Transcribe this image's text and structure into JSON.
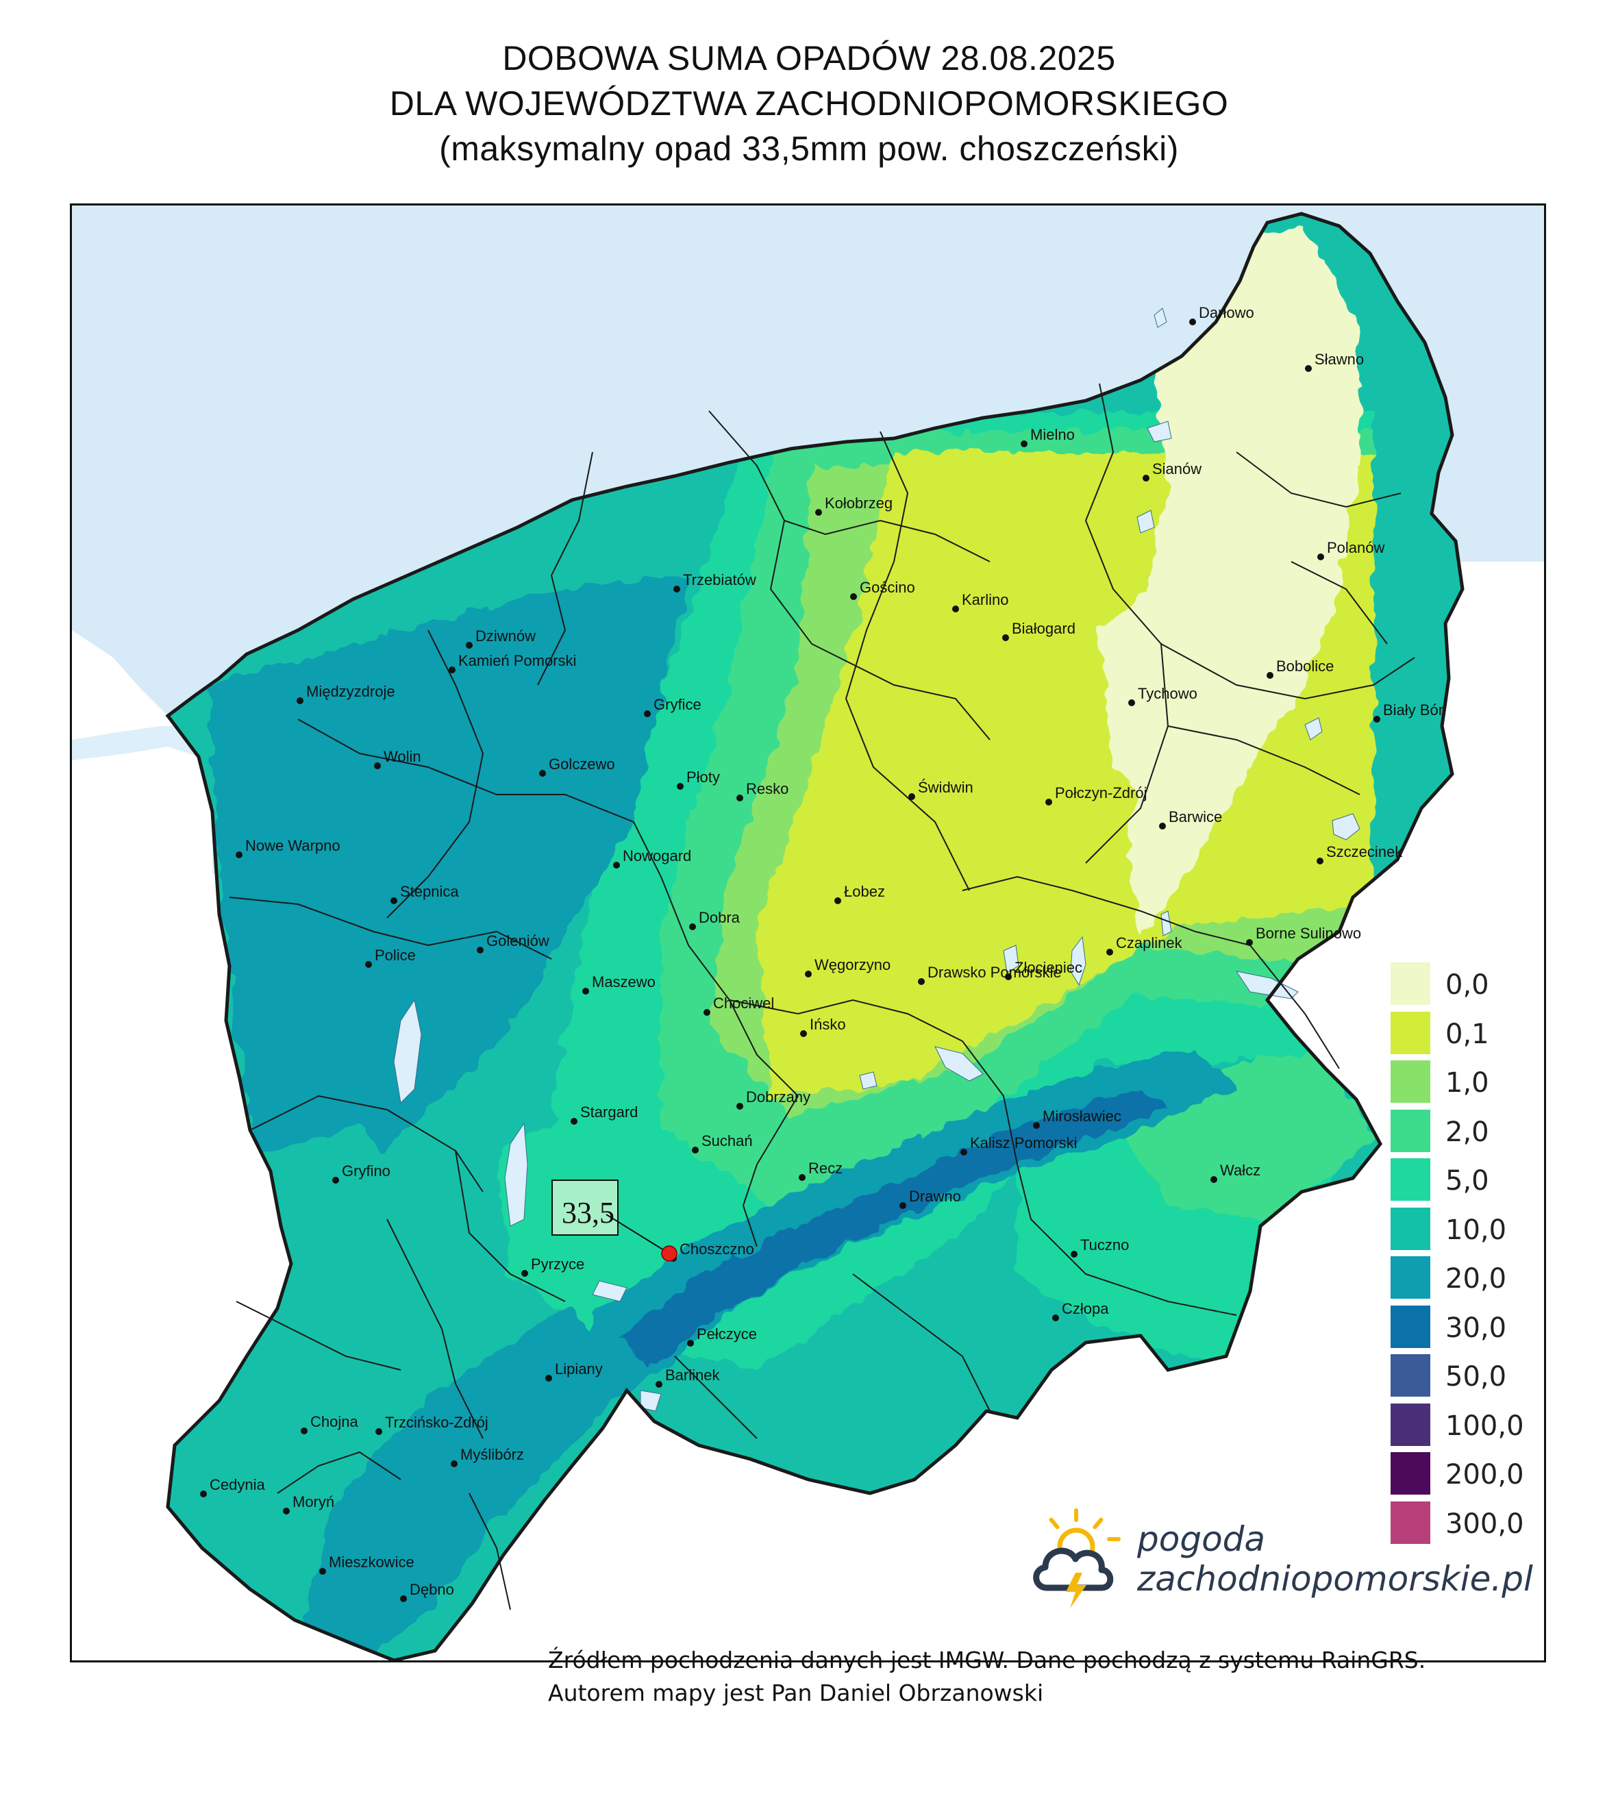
{
  "title": {
    "line1": "DOBOWA SUMA OPADÓW 28.08.2025",
    "line2": "DLA WOJEWÓDZTWA ZACHODNIOPOMORSKIEGO",
    "line3": "(maksymalny opad 33,5mm pow. choszczeński)"
  },
  "map": {
    "max_callout": "33,5",
    "max_location": "Choszczno",
    "colors": {
      "sea": "#d6ebf7",
      "lake": "#dceffa",
      "outside": "#ffffff",
      "border": "#1a1a1a",
      "max_marker": "#e8201a"
    },
    "cities": [
      {
        "name": "Darłowo"
      },
      {
        "name": "Sławno"
      },
      {
        "name": "Mielno"
      },
      {
        "name": "Sianów"
      },
      {
        "name": "Kołobrzeg"
      },
      {
        "name": "Polanów"
      },
      {
        "name": "Trzebiatów"
      },
      {
        "name": "Gościno"
      },
      {
        "name": "Karlino"
      },
      {
        "name": "Dziwnów"
      },
      {
        "name": "Białogard"
      },
      {
        "name": "Kamień Pomorski"
      },
      {
        "name": "Bobolice"
      },
      {
        "name": "Międzyzdroje"
      },
      {
        "name": "Tychowo"
      },
      {
        "name": "Gryfice"
      },
      {
        "name": "Biały Bór"
      },
      {
        "name": "Wolin"
      },
      {
        "name": "Golczewo"
      },
      {
        "name": "Płoty"
      },
      {
        "name": "Resko"
      },
      {
        "name": "Świdwin"
      },
      {
        "name": "Połczyn-Zdrój"
      },
      {
        "name": "Barwice"
      },
      {
        "name": "Nowe Warpno"
      },
      {
        "name": "Szczecinek"
      },
      {
        "name": "Nowogard"
      },
      {
        "name": "Stepnica"
      },
      {
        "name": "Łobez"
      },
      {
        "name": "Dobra"
      },
      {
        "name": "Borne Sulinowo"
      },
      {
        "name": "Goleniów"
      },
      {
        "name": "Czaplinek"
      },
      {
        "name": "Police"
      },
      {
        "name": "Węgorzyno"
      },
      {
        "name": "Złocieniec"
      },
      {
        "name": "Drawsko Pomorskie"
      },
      {
        "name": "Maszewo"
      },
      {
        "name": "Chociwel"
      },
      {
        "name": "Ińsko"
      },
      {
        "name": "Dobrzany"
      },
      {
        "name": "Stargard"
      },
      {
        "name": "Mirosławiec"
      },
      {
        "name": "Suchań"
      },
      {
        "name": "Kalisz Pomorski"
      },
      {
        "name": "Gryfino"
      },
      {
        "name": "Recz"
      },
      {
        "name": "Wałcz"
      },
      {
        "name": "Drawno"
      },
      {
        "name": "Choszczno"
      },
      {
        "name": "Tuczno"
      },
      {
        "name": "Pyrzyce"
      },
      {
        "name": "Człopa"
      },
      {
        "name": "Pełczyce"
      },
      {
        "name": "Lipiany"
      },
      {
        "name": "Barlinek"
      },
      {
        "name": "Chojna"
      },
      {
        "name": "Trzcińsko-Zdrój"
      },
      {
        "name": "Myślibórz"
      },
      {
        "name": "Cedynia"
      },
      {
        "name": "Moryń"
      },
      {
        "name": "Mieszkowice"
      },
      {
        "name": "Dębno"
      }
    ]
  },
  "legend": {
    "items": [
      {
        "label": "0,0",
        "color": "#eef8c8"
      },
      {
        "label": "0,1",
        "color": "#d2ec3a"
      },
      {
        "label": "1,0",
        "color": "#88e26a"
      },
      {
        "label": "2,0",
        "color": "#3cdc8c"
      },
      {
        "label": "5,0",
        "color": "#1ed8a0"
      },
      {
        "label": "10,0",
        "color": "#13c0a8"
      },
      {
        "label": "20,0",
        "color": "#0f9eb0"
      },
      {
        "label": "30,0",
        "color": "#0a72a8"
      },
      {
        "label": "50,0",
        "color": "#3a5a98"
      },
      {
        "label": "100,0",
        "color": "#4a3078"
      },
      {
        "label": "200,0",
        "color": "#4e0a5a"
      },
      {
        "label": "300,0",
        "color": "#b8407a"
      }
    ]
  },
  "logo": {
    "line1": "pogoda",
    "line2": "zachodniopomorskie.pl"
  },
  "source": {
    "line1": "Źródłem pochodzenia danych jest IMGW. Dane pochodzą z systemu RainGRS.",
    "line2": "Autorem mapy jest Pan Daniel Obrzanowski"
  }
}
